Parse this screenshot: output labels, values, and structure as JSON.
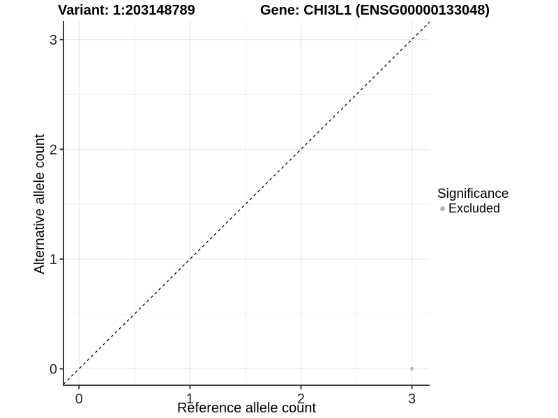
{
  "chart_data": {
    "type": "scatter",
    "title_left": "Variant: 1:203148789",
    "title_right": "Gene: CHI3L1 (ENSG00000133048)",
    "xlabel": "Reference allele count",
    "ylabel": "Alternative allele count",
    "xlim": [
      -0.14,
      3.16
    ],
    "ylim": [
      -0.15,
      3.17
    ],
    "x_ticks": [
      0,
      1,
      2,
      3
    ],
    "y_ticks": [
      0,
      1,
      2,
      3
    ],
    "x_minor_ticks": [
      0.5,
      1.5,
      2.5
    ],
    "y_minor_ticks": [
      0.5,
      1.5,
      2.5
    ],
    "grid": true,
    "reference_line": {
      "type": "identity",
      "style": "dashed",
      "color": "#000000"
    },
    "points": [
      {
        "x": 3,
        "y": 0,
        "series": "Excluded"
      }
    ],
    "legend": {
      "title": "Significance",
      "entries": [
        "Excluded"
      ],
      "position": "right"
    },
    "series_colors": {
      "Excluded": "#b9b9b9"
    }
  },
  "style": {
    "background": "#ffffff",
    "grid_major_color": "#e3e3e3",
    "grid_minor_color": "#f0f0f0",
    "axis_line_color": "#3a3a3a",
    "tick_label_color": "#262626",
    "title_color": "#000000",
    "point_color": "#b9b9b9"
  }
}
